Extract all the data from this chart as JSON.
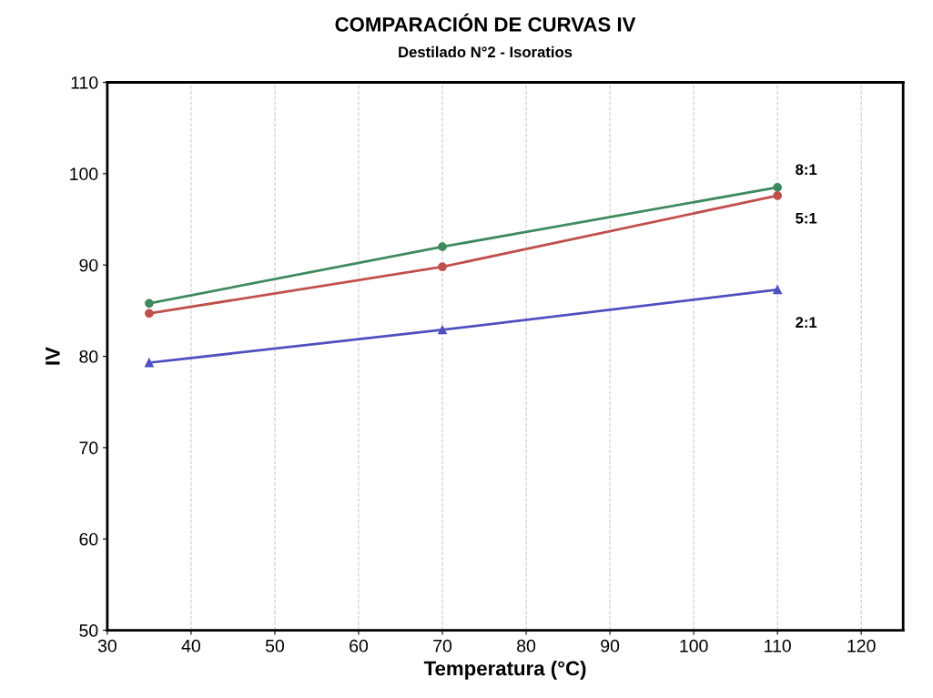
{
  "chart_data": {
    "type": "line",
    "title": "COMPARACIÓN DE CURVAS IV",
    "subtitle": "Destilado N°2 - Isoratios",
    "xlabel": "Temperatura (°C)",
    "ylabel": "IV",
    "x": [
      35,
      70,
      110
    ],
    "series": [
      {
        "name": "8:1",
        "color": "#3e8a5e",
        "marker": "circle",
        "values": [
          85.8,
          92.0,
          98.5
        ]
      },
      {
        "name": "5:1",
        "color": "#c0504d",
        "marker": "circle",
        "values": [
          84.7,
          89.8,
          97.6
        ]
      },
      {
        "name": "2:1",
        "color": "#4f4fc0",
        "marker": "triangle",
        "values": [
          79.3,
          82.9,
          87.3
        ]
      }
    ],
    "xlim": [
      30,
      125
    ],
    "xticks": [
      30,
      40,
      50,
      60,
      70,
      80,
      90,
      100,
      110,
      120
    ],
    "ylim": [
      50,
      110
    ],
    "yticks": [
      50,
      60,
      70,
      80,
      90,
      100,
      110
    ],
    "grid": "x",
    "line_style": "solid"
  }
}
